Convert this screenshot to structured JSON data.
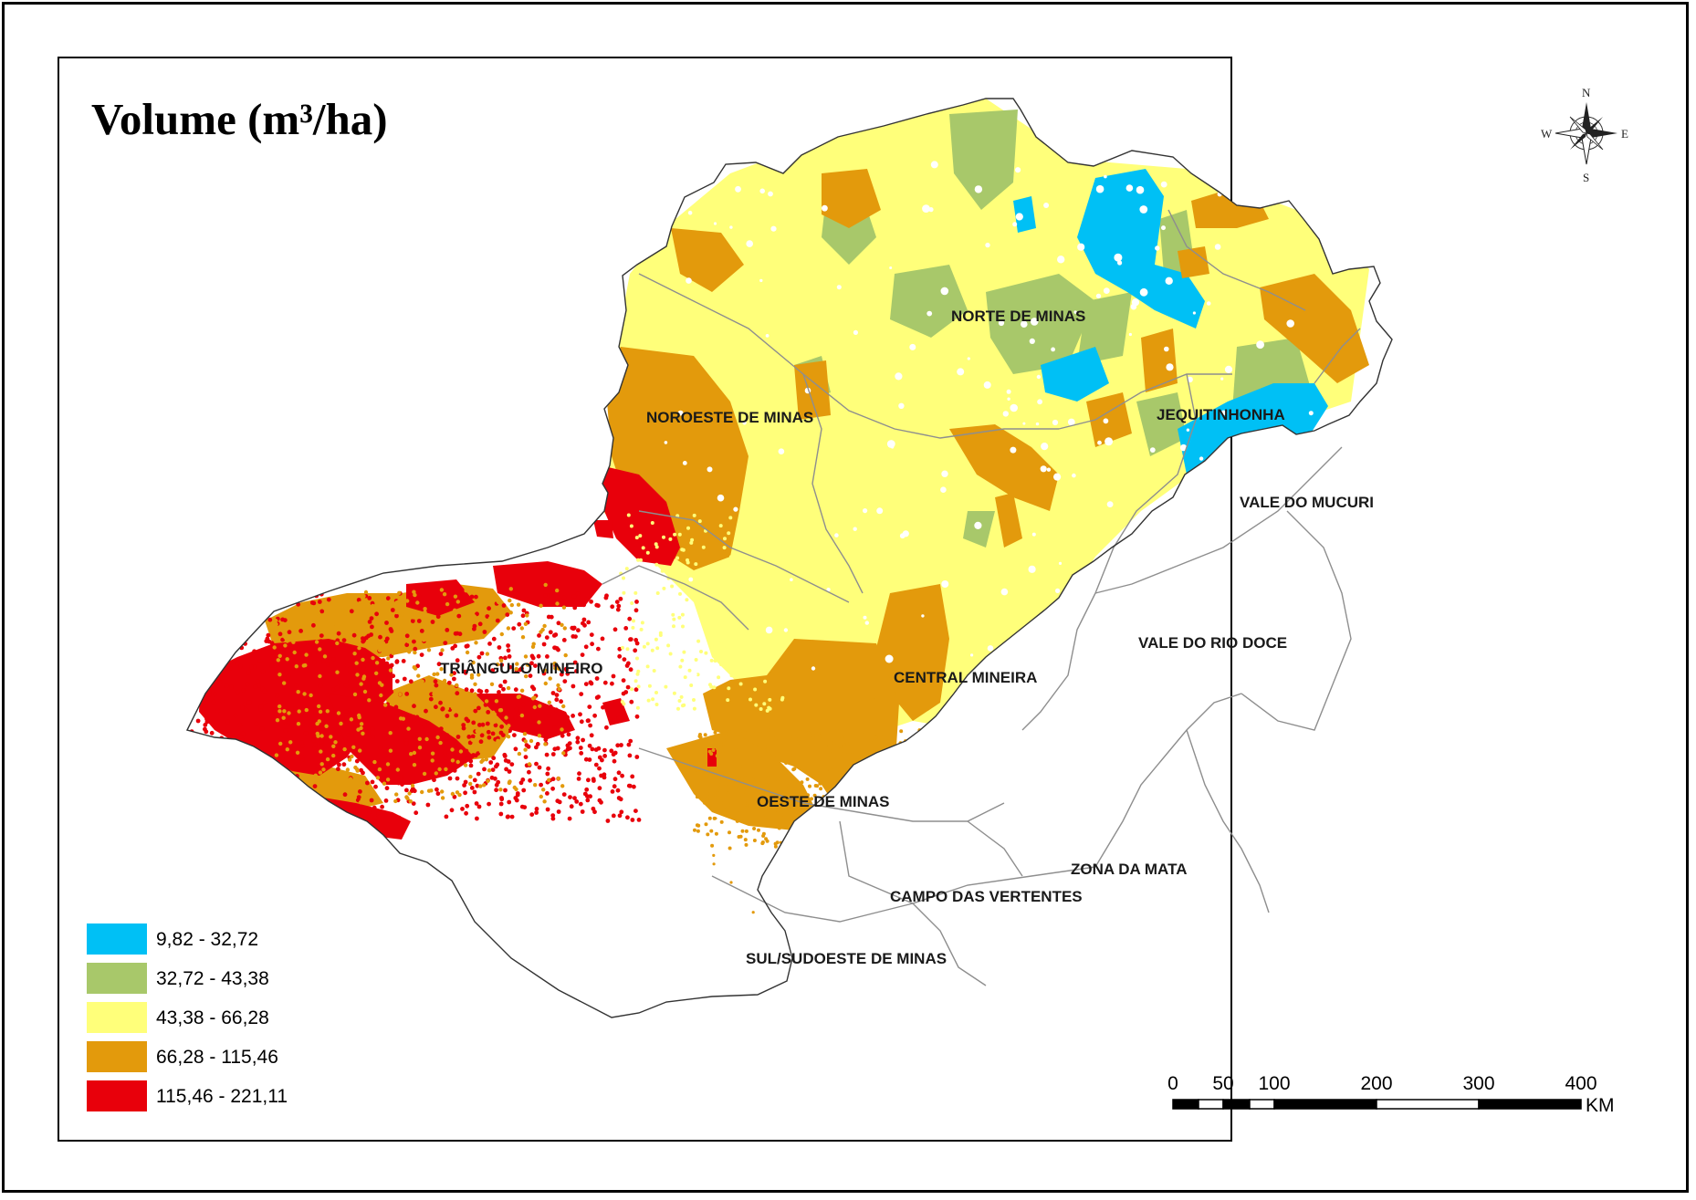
{
  "map": {
    "title": "Volume (m³/ha)",
    "regions": [
      {
        "id": "norte",
        "label": "NORTE DE MINAS"
      },
      {
        "id": "noroeste",
        "label": "NOROESTE DE MINAS"
      },
      {
        "id": "jequitinhonha",
        "label": "JEQUITINHONHA"
      },
      {
        "id": "mucuri",
        "label": "VALE DO MUCURI"
      },
      {
        "id": "riodoce",
        "label": "VALE DO RIO DOCE"
      },
      {
        "id": "triangulo",
        "label": "TRIÂNGULO MINEIRO"
      },
      {
        "id": "central",
        "label": "CENTRAL MINEIRA"
      },
      {
        "id": "oeste",
        "label": "OESTE DE MINAS"
      },
      {
        "id": "zonamata",
        "label": "ZONA DA MATA"
      },
      {
        "id": "vertentes",
        "label": "CAMPO DAS VERTENTES"
      },
      {
        "id": "sul",
        "label": "SUL/SUDOESTE DE MINAS"
      }
    ]
  },
  "legend": {
    "classes": [
      {
        "label": "9,82 - 32,72",
        "color": "#00c0f5"
      },
      {
        "label": "32,72 - 43,38",
        "color": "#a8c86a"
      },
      {
        "label": "43,38 - 66,28",
        "color": "#ffff7a"
      },
      {
        "label": "66,28 - 115,46",
        "color": "#e39a0c"
      },
      {
        "label": "115,46 - 221,11",
        "color": "#e8000b"
      }
    ]
  },
  "compass": {
    "n": "N",
    "s": "S",
    "e": "E",
    "w": "W"
  },
  "scale_bar": {
    "ticks": [
      "0",
      "50",
      "100",
      "200",
      "300",
      "400"
    ],
    "unit": "KM"
  }
}
